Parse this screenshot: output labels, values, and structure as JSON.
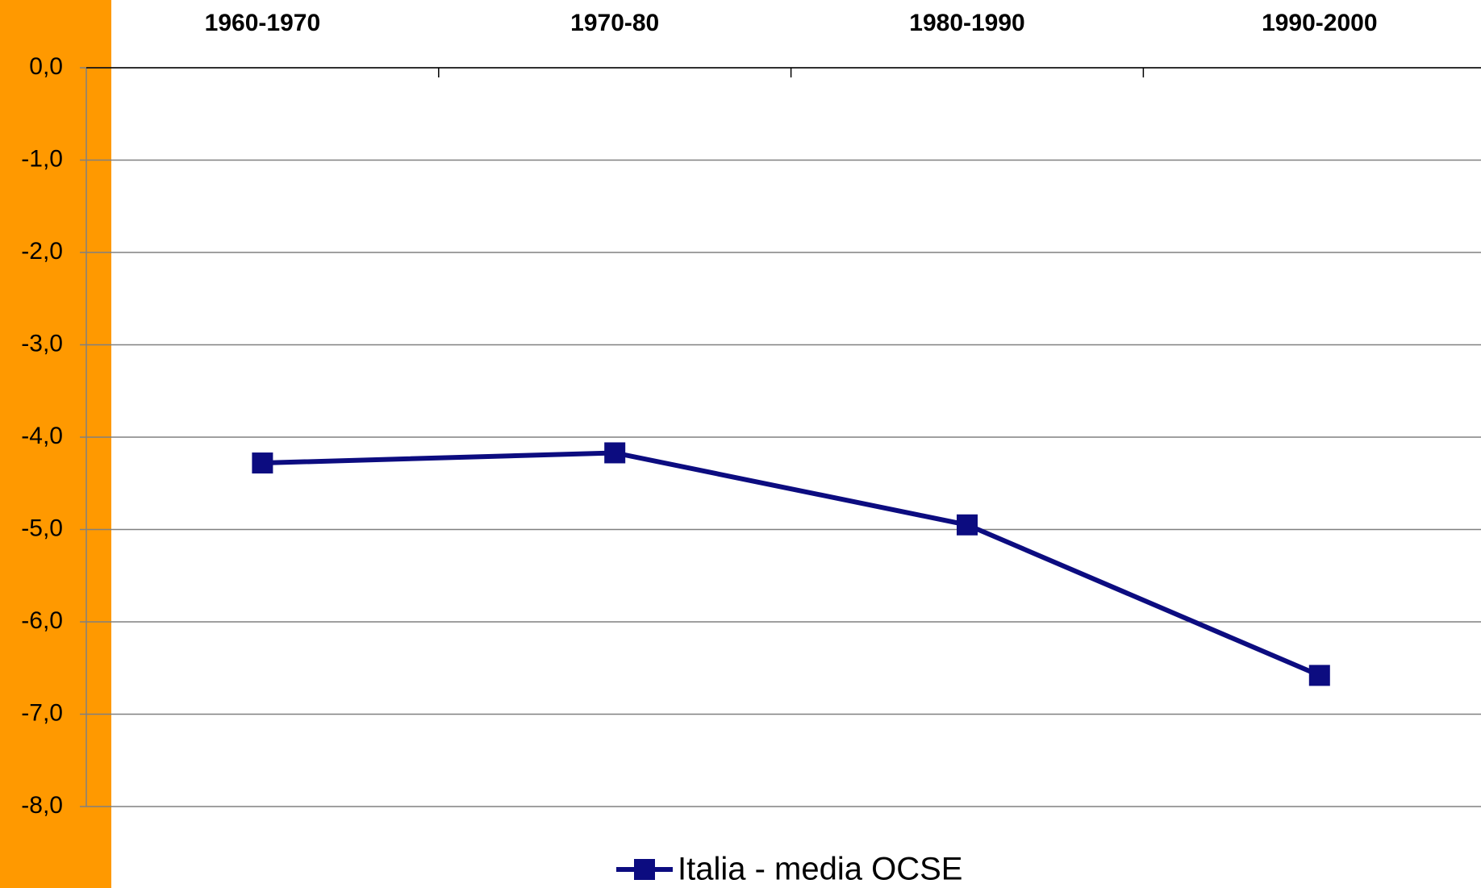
{
  "chart_data": {
    "type": "line",
    "categories": [
      "1960-1970",
      "1970-80",
      "1980-1990",
      "1990-2000"
    ],
    "series": [
      {
        "name": "Italia - media OCSE",
        "color": "#0c0c80",
        "values": [
          -4.28,
          -4.17,
          -4.95,
          -6.58
        ]
      }
    ],
    "ylim": [
      -8,
      0
    ],
    "yticks": [
      {
        "value": 0,
        "label": "0,0"
      },
      {
        "value": -1,
        "label": "-1,0"
      },
      {
        "value": -2,
        "label": "-2,0"
      },
      {
        "value": -3,
        "label": "-3,0"
      },
      {
        "value": -4,
        "label": "-4,0"
      },
      {
        "value": -5,
        "label": "-5,0"
      },
      {
        "value": -6,
        "label": "-6,0"
      },
      {
        "value": -7,
        "label": "-7,0"
      },
      {
        "value": -8,
        "label": "-8,0"
      }
    ],
    "grid": true,
    "legend": "bottom"
  }
}
